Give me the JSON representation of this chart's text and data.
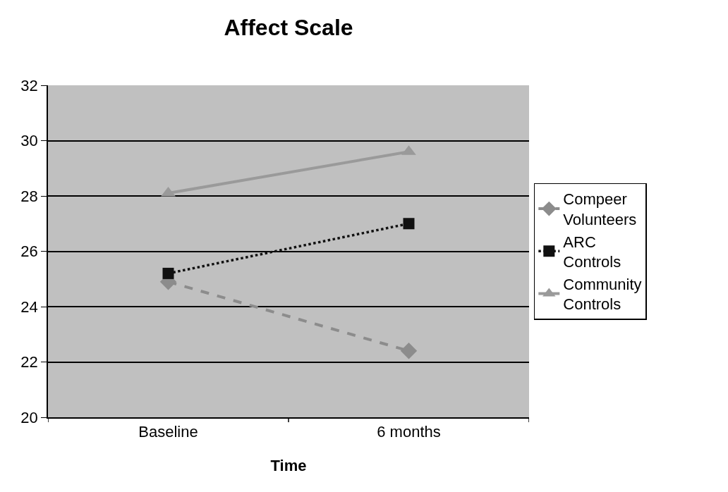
{
  "chart_data": {
    "type": "line",
    "title": "Affect Scale",
    "xlabel": "Time",
    "categories": [
      "Baseline",
      "6 months"
    ],
    "series": [
      {
        "name": "Compeer Volunteers",
        "color": "#8c8c8c",
        "values": [
          24.9,
          22.4
        ],
        "marker": "diamond",
        "line_style": "dashed"
      },
      {
        "name": "ARC Controls",
        "color": "#111111",
        "values": [
          25.2,
          27.0
        ],
        "marker": "square",
        "line_style": "dotted"
      },
      {
        "name": "Community Controls",
        "color": "#9a9a9a",
        "values": [
          28.1,
          29.6
        ],
        "marker": "triangle",
        "line_style": "solid"
      }
    ],
    "ylim": [
      20,
      32
    ],
    "yticks": [
      20,
      22,
      24,
      26,
      28,
      30,
      32
    ],
    "grid": "y",
    "legend": "right"
  }
}
